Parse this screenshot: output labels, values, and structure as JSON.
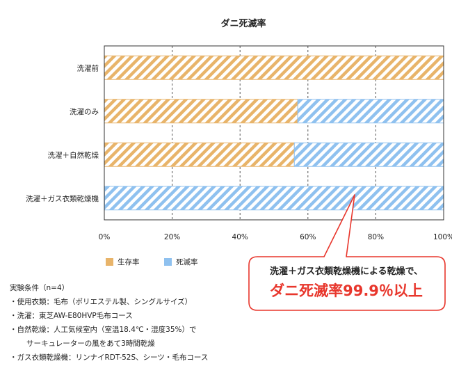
{
  "chart_data": {
    "type": "bar",
    "orientation": "horizontal",
    "stacked": true,
    "title": "ダニ死滅率",
    "categories": [
      "洗濯前",
      "洗濯のみ",
      "洗濯＋自然乾燥",
      "洗濯＋ガス衣類乾燥機"
    ],
    "series": [
      {
        "name": "生存率",
        "values": [
          100,
          57,
          56,
          0.1
        ],
        "color": "#e8b46a",
        "pattern": "diagonal-hatch"
      },
      {
        "name": "死滅率",
        "values": [
          0,
          43,
          44,
          99.9
        ],
        "color": "#8fc1ef",
        "pattern": "diagonal-hatch"
      }
    ],
    "xlim": [
      0,
      100
    ],
    "x_ticks": [
      "0%",
      "20%",
      "40%",
      "60%",
      "80%",
      "100%"
    ],
    "grid": "vertical-dashed",
    "legend": "bottom-left"
  },
  "callout": {
    "line1": "洗濯＋ガス衣類乾燥機による乾燥で、",
    "line2": "ダニ死滅率99.9％以上",
    "border_color": "#e8362c"
  },
  "conditions": {
    "header": "実験条件（n=4）",
    "items": [
      "・使用衣類：毛布（ポリエステル製、シングルサイズ）",
      "・洗濯：東芝AW-E80HVP毛布コース",
      "・自然乾燥：人工気候室内（室温18.4℃・湿度35%）で",
      "サーキュレーターの風をあて3時間乾燥",
      "・ガス衣類乾燥機：リンナイRDT-52S、シーツ・毛布コース"
    ]
  }
}
